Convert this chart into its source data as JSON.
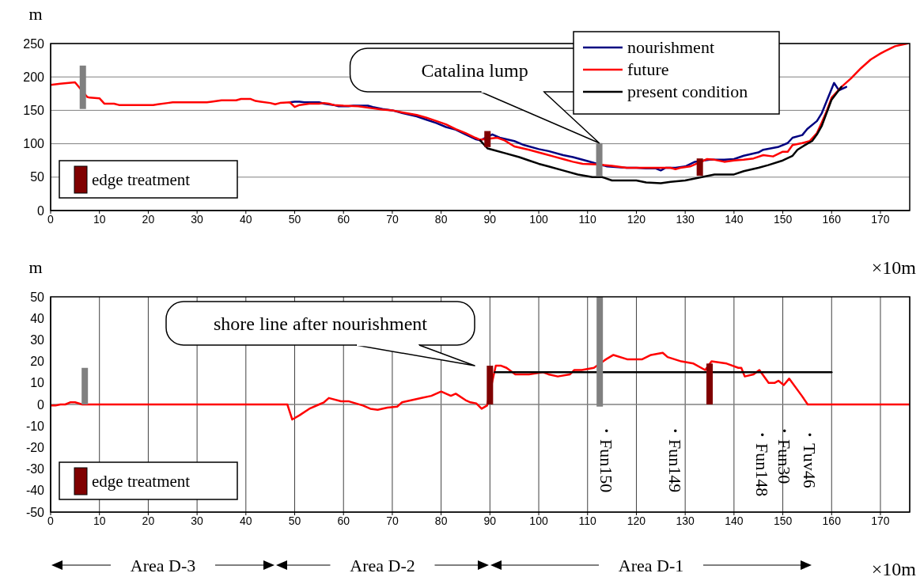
{
  "chart_data": [
    {
      "type": "line",
      "ylabel": "m",
      "xlabel": "×10m",
      "xlim": [
        0,
        176
      ],
      "xticks": [
        0,
        10,
        20,
        30,
        40,
        50,
        60,
        70,
        80,
        90,
        100,
        110,
        120,
        130,
        140,
        150,
        160,
        170
      ],
      "ylim": [
        0,
        250
      ],
      "yticks": [
        0,
        50,
        100,
        150,
        200,
        250
      ],
      "grid": "y",
      "legend": "top right",
      "annotations": [
        {
          "text": "Catalina lump",
          "x": 112.4,
          "y": 101
        },
        "edge treatment"
      ],
      "series": [
        {
          "type": "line",
          "name": "nourishment",
          "color": "#000080",
          "x": [
            49,
            50,
            51,
            52,
            55,
            56,
            58,
            59,
            61,
            62,
            65,
            66,
            68,
            70,
            72,
            75,
            77,
            79,
            81,
            83,
            85,
            87,
            88,
            90.5,
            92,
            95,
            97,
            100,
            102,
            105,
            107,
            110,
            112,
            114,
            118,
            120,
            122,
            124,
            125,
            126,
            128,
            130,
            132,
            135,
            138,
            140,
            142,
            145,
            146,
            149,
            151,
            152,
            154,
            155,
            157,
            158,
            159,
            160.5,
            161.5,
            163
          ],
          "values": [
            162,
            163,
            163,
            162,
            162,
            160,
            158,
            156,
            156,
            157,
            157,
            155,
            152,
            150,
            146,
            141,
            136,
            131,
            125,
            121,
            114,
            107,
            105,
            114,
            109,
            104,
            98,
            92,
            89,
            83,
            80,
            74,
            70,
            66,
            64,
            64,
            63,
            63,
            60,
            64,
            64,
            66,
            73,
            76,
            76,
            77,
            82,
            87,
            91,
            95,
            101,
            109,
            113,
            122,
            134,
            146,
            164,
            191,
            180,
            185
          ]
        },
        {
          "type": "line",
          "name": "future",
          "color": "#ff0000",
          "x": [
            0,
            2,
            5,
            7.5,
            8,
            10,
            11,
            13,
            14,
            21,
            22,
            24,
            25,
            32,
            33,
            35,
            38,
            39,
            41,
            42,
            43,
            45,
            46,
            47,
            49,
            50,
            51,
            53,
            55,
            56,
            57,
            58,
            60,
            63,
            66,
            68,
            70,
            72,
            75,
            77,
            79,
            81,
            83,
            85,
            87,
            88,
            91.5,
            93,
            95,
            98,
            101,
            103,
            105,
            107,
            109,
            112,
            115,
            118,
            123,
            127,
            128,
            129,
            131,
            134.5,
            136,
            138,
            140,
            142,
            144,
            146,
            148,
            150,
            151,
            152,
            154,
            155.5,
            157,
            158,
            159,
            160,
            162,
            164,
            166,
            168,
            170,
            171,
            173,
            175.5
          ],
          "values": [
            188,
            190,
            192,
            170,
            169,
            168,
            160,
            160,
            158,
            158,
            159,
            161,
            162,
            162,
            163,
            165,
            165,
            167,
            167,
            164,
            163,
            161,
            159,
            161,
            162,
            155,
            158,
            160,
            160,
            161,
            160,
            158,
            157,
            156,
            153,
            151,
            150,
            147,
            143,
            139,
            134,
            129,
            122,
            116,
            109,
            106,
            109,
            105,
            96,
            91,
            85,
            81,
            77,
            73,
            70,
            69,
            67,
            64,
            64,
            64,
            62,
            64,
            66,
            77,
            76,
            73,
            75,
            76,
            78,
            83,
            81,
            88,
            88,
            98,
            101,
            104,
            116,
            132,
            149,
            169,
            185,
            198,
            213,
            226,
            235,
            239,
            246,
            250
          ]
        },
        {
          "type": "line",
          "name": "present condition",
          "color": "#000000",
          "x": [
            88,
            89.5,
            91,
            93,
            96,
            98,
            100,
            102,
            105,
            108,
            111,
            113,
            115,
            120,
            122,
            125,
            127,
            130,
            132,
            134,
            136,
            140,
            142,
            145,
            147,
            150,
            152,
            153,
            155,
            156,
            157,
            158,
            160,
            162
          ],
          "values": [
            105,
            93,
            90,
            86,
            80,
            75,
            70,
            66,
            60,
            54,
            50,
            50,
            45,
            45,
            42,
            41,
            43,
            45,
            48,
            51,
            54,
            54,
            59,
            64,
            68,
            75,
            82,
            91,
            100,
            104,
            114,
            127,
            166,
            185
          ]
        },
        {
          "type": "bar",
          "color": "#808080",
          "x": [
            6.6,
            112.4
          ],
          "values": [
            65,
            50
          ],
          "base": [
            152,
            51
          ]
        },
        {
          "type": "bar",
          "color": "#800000",
          "x": [
            89.5,
            133
          ],
          "values": [
            24,
            26
          ],
          "base": [
            95,
            52
          ]
        }
      ]
    },
    {
      "type": "line",
      "ylabel": "m",
      "xlabel": "×10m",
      "xlim": [
        0,
        176
      ],
      "xticks": [
        0,
        10,
        20,
        30,
        40,
        50,
        60,
        70,
        80,
        90,
        100,
        110,
        120,
        130,
        140,
        150,
        160,
        170
      ],
      "ylim": [
        -50,
        50
      ],
      "yticks": [
        -50,
        -40,
        -30,
        -20,
        -10,
        0,
        10,
        20,
        30,
        40,
        50
      ],
      "grid": "x",
      "ref_lines": [
        {
          "axis": "y",
          "value": 0,
          "color": "#808080"
        }
      ],
      "annotations": [
        "shore line after nourishment",
        "・Fun150",
        "・Fun149",
        "・Fun148",
        "・Fun30",
        "・Tuv46",
        "Area D-3",
        "Area D-2",
        "Area D-1",
        "edge treatment"
      ],
      "series": [
        {
          "type": "line",
          "color": "#ff0000",
          "x": [
            0,
            1,
            2,
            3,
            4,
            5,
            6.5,
            48.5,
            49.5,
            51,
            53,
            55,
            56,
            57,
            59.5,
            61,
            62.5,
            64,
            65.5,
            67,
            69,
            71,
            72,
            74,
            76,
            78,
            80,
            82,
            83,
            85,
            86,
            87.2,
            88.3,
            89.4,
            91.2,
            92.3,
            93.4,
            95.2,
            96.8,
            98,
            100.8,
            102,
            103.9,
            106.4,
            107.3,
            108.8,
            111.3,
            113.8,
            115.3,
            118.1,
            121.2,
            123,
            125.4,
            126.4,
            129.2,
            131.7,
            134.1,
            135.4,
            138.5,
            140.9,
            141.5,
            142.2,
            144,
            145.2,
            147.1,
            148.3,
            149.1,
            150.2,
            151.3,
            153.9,
            155.1,
            156.4,
            176
          ],
          "values": [
            -0.5,
            -0.5,
            0,
            0,
            1,
            1,
            0,
            0,
            -7,
            -5,
            -2,
            0,
            1,
            3,
            1.5,
            1.5,
            0.5,
            -0.5,
            -2,
            -2.5,
            -1.5,
            -1,
            1,
            2,
            3,
            4,
            6,
            4,
            5,
            2,
            1,
            0.5,
            -2,
            -0.5,
            18,
            18,
            17,
            14,
            14,
            14,
            15,
            14,
            13,
            14,
            16,
            16,
            17,
            21,
            23,
            21,
            21,
            23,
            24,
            22,
            20,
            19,
            16,
            20,
            19,
            17,
            17,
            13,
            14,
            16,
            10,
            10,
            11,
            9,
            12,
            4,
            0,
            0,
            0
          ]
        },
        {
          "type": "line",
          "color": "#000000",
          "x": [
            91,
            160
          ],
          "values": [
            15,
            15
          ]
        },
        {
          "type": "bar",
          "color": "#808080",
          "x": [
            7,
            112.5
          ],
          "values": [
            17,
            51
          ],
          "base": [
            0,
            -1
          ]
        },
        {
          "type": "bar",
          "color": "#800000",
          "x": [
            90,
            135
          ],
          "values": [
            18,
            19
          ],
          "base": [
            0,
            0
          ]
        }
      ]
    }
  ]
}
